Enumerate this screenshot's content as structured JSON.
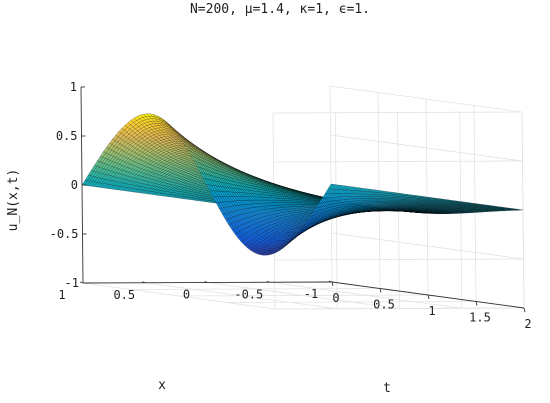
{
  "chart_data": {
    "type": "surface",
    "title": "N=200, μ=1.4, κ=1, ϵ=1.",
    "xlabel": "x",
    "ylabel": "t",
    "zlabel": "u_N(x,t)",
    "xlim": [
      -1,
      1
    ],
    "ylim": [
      0,
      2
    ],
    "zlim": [
      -1,
      1
    ],
    "x_ticks": [
      "-1",
      "-0.5",
      "0",
      "0.5",
      "1"
    ],
    "t_ticks": [
      "0",
      "0.5",
      "1",
      "1.5",
      "2"
    ],
    "z_ticks": [
      "-1",
      "-0.5",
      "0",
      "0.5",
      "1"
    ],
    "grid": true,
    "colormap": "parula",
    "surface_samples": {
      "x": [
        -1,
        -0.5,
        0,
        0.5,
        1
      ],
      "t": [
        0,
        0.5,
        1,
        1.5,
        2
      ],
      "u": [
        [
          0.0,
          -0.75,
          0.0,
          0.72,
          0.0
        ],
        [
          0.0,
          -0.45,
          0.0,
          0.43,
          0.0
        ],
        [
          0.0,
          -0.22,
          0.0,
          0.21,
          0.0
        ],
        [
          0.0,
          -0.09,
          0.0,
          0.09,
          0.0
        ],
        [
          0.0,
          -0.03,
          0.0,
          0.03,
          0.0
        ]
      ]
    }
  }
}
